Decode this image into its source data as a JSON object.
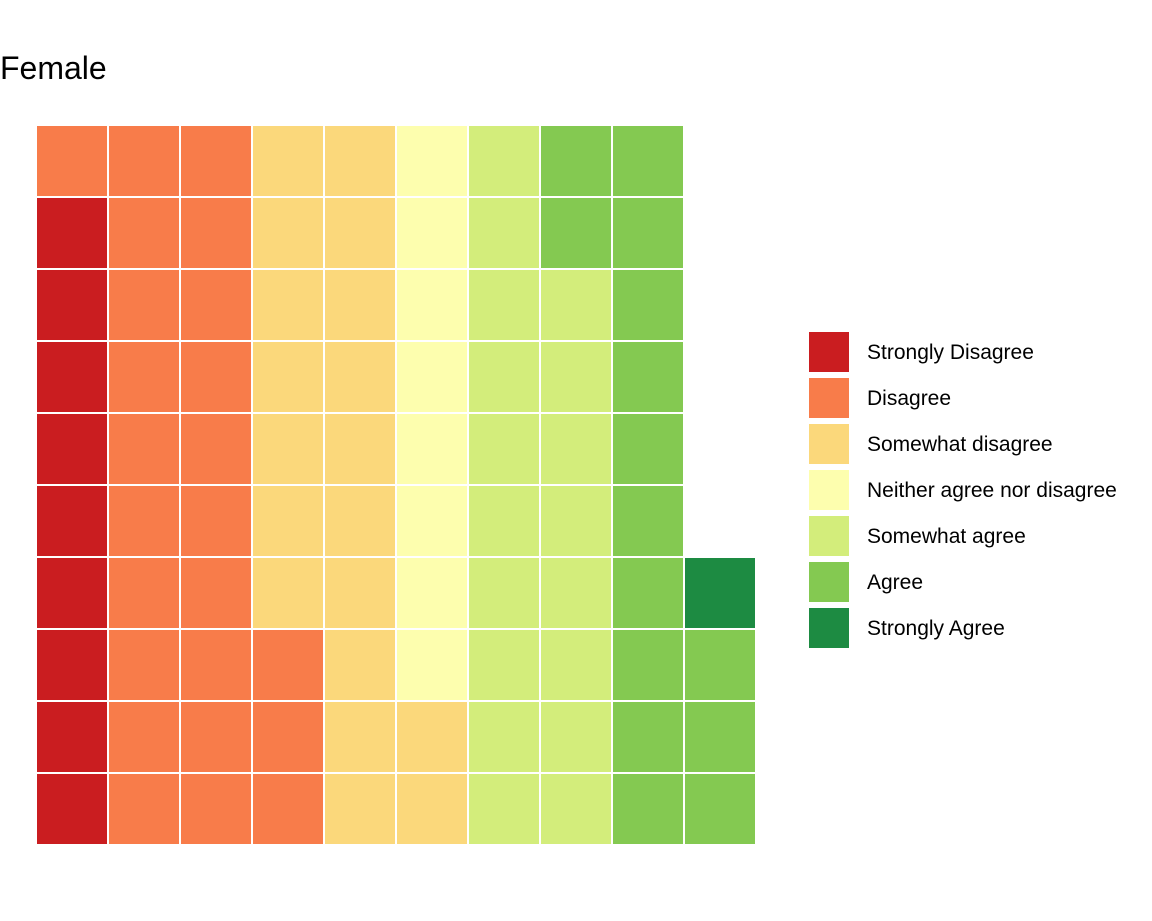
{
  "chart_data": {
    "type": "waffle",
    "title": "Female",
    "grid": {
      "columns": 10,
      "rows": 10,
      "fill_order": "column-major, bottom-to-top, left-to-right"
    },
    "categories": [
      "Strongly Disagree",
      "Disagree",
      "Somewhat disagree",
      "Neither agree nor disagree",
      "Somewhat agree",
      "Agree",
      "Strongly Agree"
    ],
    "values": [
      9,
      24,
      19,
      8,
      18,
      15,
      1
    ],
    "total": 94,
    "colors": [
      "#ca1d20",
      "#f87c4a",
      "#fbd87b",
      "#fdfeae",
      "#d3ed7b",
      "#84c951",
      "#1d8b42"
    ],
    "empty_color": "#ffffff",
    "legend_position": "right"
  }
}
